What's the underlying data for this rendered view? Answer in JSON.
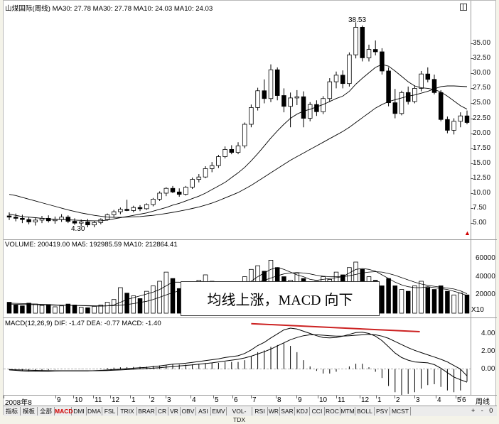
{
  "header": {
    "price": "山煤国际(周线) MA30: 27.78 MA30: 27.78 MA10: 24.03 MA10: 24.03",
    "volume": "VOLUME: 200419.00  MA5: 192985.59  MA10: 212864.41",
    "macd": "MACD(12,26,9)  DIF: -1.47  DEA: -0.77  MACD: -1.40"
  },
  "annotations": {
    "high": "38.53",
    "low": "4.30",
    "overlay": "均线上涨，MACD 向下"
  },
  "axes": {
    "price_ticks": [
      "35.00",
      "32.50",
      "30.00",
      "27.50",
      "25.00",
      "22.50",
      "20.00",
      "17.50",
      "15.00",
      "12.50",
      "10.00",
      "7.50",
      "5.00"
    ],
    "volume_ticks": [
      "60000",
      "40000",
      "20000"
    ],
    "volume_unit": "X10",
    "macd_ticks": [
      "4.00",
      "2.00",
      "0.00"
    ],
    "x_labels": [
      "2008年8",
      "9",
      "10",
      "11",
      "12",
      "1",
      "2",
      "3",
      "4",
      "5",
      "6",
      "7",
      "8",
      "9",
      "10",
      "11",
      "12",
      "1",
      "2",
      "3",
      "4",
      "5",
      "6"
    ],
    "period": "周线"
  },
  "tabs": [
    "指标",
    "模板",
    "全部",
    "MACD",
    "DMI",
    "DMA",
    "FSL",
    "TRIX",
    "BRAR",
    "CR",
    "VR",
    "OBV",
    "ASI",
    "EMV",
    "VOL-TDX",
    "RSI",
    "WR",
    "SAR",
    "KDJ",
    "CCI",
    "ROC",
    "MTM",
    "BOLL",
    "PSY",
    "MCST"
  ],
  "active_tab": "MACD",
  "controls": [
    "+",
    "-",
    "0"
  ],
  "colors": {
    "up": "#000000",
    "down": "#000000",
    "trend_line": "#cc2222",
    "active_tab": "#d00000"
  },
  "chart_data": [
    {
      "type": "candlestick",
      "title": "山煤国际(周线)",
      "ylim": [
        3,
        40
      ],
      "ohlc": [
        [
          6.2,
          6.8,
          5.5,
          6.0
        ],
        [
          6.0,
          6.6,
          5.3,
          5.8
        ],
        [
          5.8,
          6.4,
          5.0,
          5.6
        ],
        [
          5.6,
          6.0,
          4.8,
          5.2
        ],
        [
          5.2,
          5.9,
          4.6,
          5.5
        ],
        [
          5.5,
          6.2,
          5.0,
          5.8
        ],
        [
          5.8,
          6.3,
          5.1,
          5.4
        ],
        [
          5.4,
          6.1,
          4.9,
          5.6
        ],
        [
          5.6,
          6.5,
          5.2,
          6.0
        ],
        [
          6.0,
          6.3,
          5.0,
          5.3
        ],
        [
          5.3,
          5.8,
          4.7,
          5.0
        ],
        [
          5.0,
          5.6,
          4.5,
          5.2
        ],
        [
          5.2,
          5.7,
          4.3,
          4.7
        ],
        [
          4.7,
          5.4,
          4.3,
          5.1
        ],
        [
          5.1,
          5.8,
          4.8,
          5.6
        ],
        [
          5.6,
          6.6,
          5.4,
          6.4
        ],
        [
          6.4,
          7.2,
          6.0,
          6.9
        ],
        [
          6.9,
          7.6,
          6.5,
          7.3
        ],
        [
          7.3,
          8.9,
          7.0,
          7.1
        ],
        [
          7.1,
          7.9,
          6.8,
          7.6
        ],
        [
          7.6,
          8.0,
          7.0,
          7.4
        ],
        [
          7.4,
          8.3,
          7.2,
          8.1
        ],
        [
          8.1,
          9.2,
          7.8,
          9.0
        ],
        [
          9.0,
          10.3,
          8.7,
          10.0
        ],
        [
          10.0,
          11.0,
          9.5,
          10.8
        ],
        [
          10.8,
          11.2,
          10.0,
          10.2
        ],
        [
          10.2,
          10.8,
          9.4,
          9.8
        ],
        [
          9.8,
          11.2,
          9.6,
          11.0
        ],
        [
          11.0,
          12.6,
          10.7,
          12.3
        ],
        [
          12.3,
          13.2,
          11.8,
          12.7
        ],
        [
          12.7,
          14.5,
          12.5,
          14.1
        ],
        [
          14.1,
          15.2,
          13.5,
          14.6
        ],
        [
          14.6,
          16.4,
          14.2,
          16.1
        ],
        [
          16.1,
          17.8,
          15.8,
          17.3
        ],
        [
          17.3,
          18.0,
          16.5,
          16.8
        ],
        [
          16.8,
          18.5,
          16.5,
          17.9
        ],
        [
          17.9,
          21.8,
          17.5,
          21.5
        ],
        [
          21.5,
          24.8,
          21.0,
          24.3
        ],
        [
          24.3,
          27.6,
          23.8,
          27.1
        ],
        [
          27.1,
          29.0,
          25.0,
          25.8
        ],
        [
          25.8,
          31.5,
          25.2,
          30.6
        ],
        [
          30.6,
          31.0,
          25.5,
          26.3
        ],
        [
          26.3,
          27.5,
          23.5,
          24.5
        ],
        [
          24.5,
          26.8,
          21.0,
          25.9
        ],
        [
          25.9,
          27.2,
          24.7,
          26.1
        ],
        [
          26.1,
          27.0,
          21.0,
          22.5
        ],
        [
          22.5,
          25.2,
          22.0,
          24.8
        ],
        [
          24.8,
          25.5,
          22.9,
          23.6
        ],
        [
          23.6,
          26.2,
          23.2,
          25.8
        ],
        [
          25.8,
          29.2,
          25.2,
          28.6
        ],
        [
          28.6,
          30.3,
          27.5,
          29.7
        ],
        [
          29.7,
          30.5,
          27.5,
          28.3
        ],
        [
          28.3,
          33.5,
          27.8,
          33.1
        ],
        [
          33.1,
          38.53,
          32.5,
          37.7
        ],
        [
          37.7,
          38.0,
          32.0,
          32.6
        ],
        [
          32.6,
          34.8,
          32.0,
          34.0
        ],
        [
          34.0,
          35.5,
          33.0,
          33.6
        ],
        [
          33.6,
          34.2,
          29.8,
          30.4
        ],
        [
          30.4,
          31.0,
          24.5,
          25.1
        ],
        [
          25.1,
          27.4,
          22.5,
          23.3
        ],
        [
          23.3,
          27.1,
          23.0,
          26.8
        ],
        [
          26.8,
          27.8,
          24.8,
          25.3
        ],
        [
          25.3,
          28.0,
          25.0,
          27.5
        ],
        [
          27.5,
          30.4,
          27.0,
          29.9
        ],
        [
          29.9,
          31.0,
          28.5,
          29.0
        ],
        [
          29.0,
          29.8,
          26.5,
          26.8
        ],
        [
          26.8,
          27.2,
          22.0,
          22.3
        ],
        [
          22.3,
          22.8,
          20.0,
          20.5
        ],
        [
          20.5,
          22.5,
          19.8,
          22.0
        ],
        [
          22.0,
          23.5,
          21.0,
          22.9
        ],
        [
          22.9,
          23.8,
          21.5,
          21.8
        ]
      ],
      "ma10": [
        6.5,
        6.3,
        6.1,
        6.0,
        5.9,
        5.8,
        5.7,
        5.65,
        5.6,
        5.55,
        5.5,
        5.45,
        5.4,
        5.38,
        5.4,
        5.5,
        5.7,
        5.9,
        6.1,
        6.3,
        6.5,
        6.7,
        7.0,
        7.3,
        7.6,
        8.0,
        8.3,
        8.7,
        9.1,
        9.5,
        10.0,
        10.6,
        11.2,
        11.8,
        12.6,
        13.4,
        14.3,
        15.4,
        16.6,
        17.9,
        19.2,
        20.4,
        21.5,
        22.5,
        23.2,
        23.7,
        24.0,
        24.4,
        24.8,
        25.3,
        25.8,
        26.2,
        27.0,
        28.2,
        29.2,
        30.1,
        31.0,
        31.5,
        31.2,
        30.4,
        29.5,
        28.6,
        27.9,
        27.6,
        27.5,
        27.3,
        26.9,
        26.2,
        25.4,
        24.6,
        24.03
      ],
      "ma30": [
        9.8,
        9.6,
        9.3,
        9.0,
        8.7,
        8.4,
        8.1,
        7.8,
        7.5,
        7.2,
        6.95,
        6.7,
        6.5,
        6.3,
        6.15,
        6.0,
        5.95,
        5.95,
        6.0,
        6.05,
        6.1,
        6.2,
        6.3,
        6.45,
        6.6,
        6.8,
        7.0,
        7.2,
        7.45,
        7.7,
        8.0,
        8.35,
        8.75,
        9.2,
        9.65,
        10.1,
        10.7,
        11.3,
        12.0,
        12.7,
        13.4,
        14.1,
        14.8,
        15.5,
        16.1,
        16.7,
        17.3,
        17.9,
        18.5,
        19.1,
        19.7,
        20.3,
        21.0,
        21.8,
        22.6,
        23.4,
        24.2,
        24.8,
        25.3,
        25.6,
        25.9,
        26.2,
        26.4,
        26.7,
        27.0,
        27.4,
        27.8,
        27.9,
        27.9,
        27.85,
        27.78
      ]
    },
    {
      "type": "bar",
      "title": "VOLUME",
      "ylim": [
        0,
        70000
      ],
      "values": [
        12000,
        9000,
        8000,
        11000,
        10000,
        8500,
        9500,
        7000,
        8000,
        10000,
        9000,
        6500,
        6000,
        7500,
        9000,
        12000,
        15000,
        28000,
        22000,
        19000,
        16000,
        24000,
        30000,
        35000,
        45000,
        38000,
        27000,
        20000,
        30000,
        36000,
        42000,
        35000,
        26000,
        33000,
        30000,
        28000,
        40000,
        48000,
        52000,
        46000,
        58000,
        50000,
        40000,
        36000,
        44000,
        38000,
        30000,
        35000,
        40000,
        37000,
        45000,
        42000,
        50000,
        56000,
        48000,
        40000,
        36000,
        30000,
        38000,
        30000,
        26000,
        24000,
        30000,
        35000,
        28000,
        26000,
        30000,
        24000,
        20000,
        22000,
        20042
      ],
      "ma5": [
        10000,
        9800,
        9600,
        9400,
        9300,
        9200,
        9000,
        8800,
        8700,
        8600,
        8500,
        8300,
        8000,
        7800,
        7700,
        8000,
        9000,
        12000,
        15000,
        17000,
        19000,
        21000,
        23000,
        26000,
        30000,
        34000,
        34000,
        32000,
        30000,
        30000,
        32000,
        34000,
        34000,
        33000,
        32000,
        31000,
        32000,
        35000,
        40000,
        44000,
        48000,
        50000,
        48000,
        45000,
        42000,
        40000,
        37000,
        36000,
        37000,
        38000,
        39000,
        40000,
        44000,
        48000,
        49000,
        48000,
        46000,
        42000,
        38000,
        34000,
        31000,
        29000,
        28000,
        28000,
        29000,
        28000,
        27000,
        26000,
        24000,
        22000,
        19299
      ],
      "ma10": [
        11000,
        10800,
        10600,
        10300,
        10000,
        9700,
        9400,
        9100,
        8900,
        8700,
        8500,
        8400,
        8300,
        8200,
        8100,
        8100,
        8300,
        8800,
        9500,
        10500,
        11800,
        13000,
        15000,
        17500,
        20000,
        22500,
        24500,
        26000,
        27500,
        29000,
        30500,
        31500,
        32000,
        32000,
        31500,
        31200,
        31500,
        32500,
        34000,
        36000,
        38500,
        41000,
        43000,
        44000,
        44500,
        44000,
        43000,
        41500,
        40500,
        40000,
        40000,
        40000,
        41000,
        42500,
        44000,
        45000,
        45500,
        45000,
        43500,
        41500,
        39000,
        36500,
        34000,
        32000,
        30500,
        29500,
        28500,
        27500,
        26500,
        24500,
        21286
      ]
    },
    {
      "type": "line",
      "title": "MACD(12,26,9)",
      "ylim": [
        -2.5,
        5
      ],
      "series": [
        {
          "name": "DIF",
          "values": [
            -0.1,
            -0.15,
            -0.2,
            -0.25,
            -0.25,
            -0.25,
            -0.24,
            -0.22,
            -0.2,
            -0.2,
            -0.2,
            -0.2,
            -0.2,
            -0.18,
            -0.15,
            -0.1,
            -0.05,
            0.0,
            0.05,
            0.1,
            0.15,
            0.2,
            0.28,
            0.36,
            0.45,
            0.55,
            0.6,
            0.66,
            0.75,
            0.85,
            0.95,
            1.05,
            1.15,
            1.3,
            1.4,
            1.5,
            1.75,
            2.15,
            2.65,
            3.0,
            3.5,
            3.95,
            4.4,
            4.6,
            4.5,
            4.25,
            4.0,
            3.75,
            3.55,
            3.5,
            3.55,
            3.7,
            3.9,
            4.1,
            4.15,
            4.0,
            3.7,
            3.2,
            2.5,
            1.8,
            1.3,
            1.0,
            0.8,
            0.75,
            0.7,
            0.5,
            0.1,
            -0.4,
            -0.9,
            -1.2,
            -1.47
          ]
        },
        {
          "name": "DEA",
          "values": [
            -0.05,
            -0.08,
            -0.1,
            -0.13,
            -0.15,
            -0.17,
            -0.18,
            -0.19,
            -0.19,
            -0.19,
            -0.19,
            -0.19,
            -0.19,
            -0.19,
            -0.18,
            -0.16,
            -0.13,
            -0.1,
            -0.06,
            -0.02,
            0.02,
            0.06,
            0.1,
            0.16,
            0.22,
            0.28,
            0.35,
            0.41,
            0.48,
            0.55,
            0.62,
            0.7,
            0.8,
            0.9,
            1.0,
            1.1,
            1.25,
            1.45,
            1.7,
            1.95,
            2.25,
            2.6,
            2.95,
            3.3,
            3.55,
            3.75,
            3.85,
            3.85,
            3.8,
            3.75,
            3.7,
            3.7,
            3.75,
            3.8,
            3.85,
            3.9,
            3.85,
            3.7,
            3.45,
            3.1,
            2.75,
            2.4,
            2.1,
            1.85,
            1.6,
            1.35,
            1.1,
            0.8,
            0.4,
            0.0,
            -0.77
          ]
        },
        {
          "name": "MACD",
          "values": [
            -0.1,
            -0.15,
            -0.2,
            -0.22,
            -0.2,
            -0.16,
            -0.12,
            -0.06,
            -0.02,
            -0.02,
            -0.02,
            -0.02,
            -0.02,
            0.02,
            0.06,
            0.12,
            0.16,
            0.2,
            0.22,
            0.24,
            0.26,
            0.28,
            0.36,
            0.4,
            0.46,
            0.54,
            0.5,
            0.5,
            0.54,
            0.6,
            0.66,
            0.7,
            0.7,
            0.8,
            0.8,
            0.8,
            1.0,
            1.4,
            1.9,
            2.1,
            2.5,
            2.7,
            2.9,
            2.6,
            1.9,
            1.0,
            0.3,
            -0.2,
            -0.5,
            -0.5,
            -0.3,
            0.0,
            0.3,
            0.6,
            0.6,
            0.2,
            -0.3,
            -1.0,
            -1.9,
            -2.6,
            -2.9,
            -2.8,
            -2.6,
            -2.2,
            -1.8,
            -1.7,
            -2.0,
            -2.4,
            -2.6,
            -2.4,
            -1.4
          ]
        }
      ]
    }
  ]
}
